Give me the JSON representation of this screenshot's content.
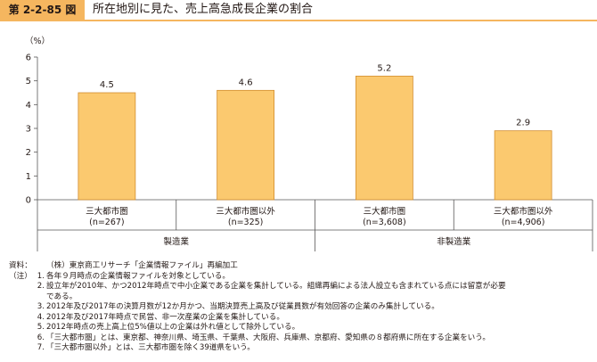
{
  "header": {
    "figure_label": "第 2-2-85 図",
    "title": "所在地別に見た、売上高急成長企業の割合"
  },
  "colors": {
    "bar_fill": "#fbc96f",
    "bar_stroke": "#d28d2e",
    "header_accent": "#f5b65f",
    "axis": "#595757"
  },
  "chart_data": {
    "type": "bar",
    "unit_label": "（%）",
    "ylim": [
      0,
      6
    ],
    "yticks": [
      "0",
      "1",
      "2",
      "3",
      "4",
      "5",
      "6"
    ],
    "grid": false,
    "categories": [
      {
        "name": "三大都市圏",
        "n": "(n=267)",
        "group": "製造業"
      },
      {
        "name": "三大都市圏以外",
        "n": "(n=325)",
        "group": "製造業"
      },
      {
        "name": "三大都市圏",
        "n": "(n=3,608)",
        "group": "非製造業"
      },
      {
        "name": "三大都市圏以外",
        "n": "(n=4,906)",
        "group": "非製造業"
      }
    ],
    "values": [
      4.5,
      4.6,
      5.2,
      2.9
    ],
    "value_labels": [
      "4.5",
      "4.6",
      "5.2",
      "2.9"
    ],
    "groups": [
      "製造業",
      "非製造業"
    ]
  },
  "notes": {
    "source_label": "資料：",
    "source": "（株）東京商工リサーチ「企業情報ファイル」再編加工",
    "note_label": "（注）",
    "items": [
      {
        "num": "1.",
        "text": "各年９月時点の企業情報ファイルを対象としている。"
      },
      {
        "num": "2.",
        "text": "設立年が2010年、かつ2012年時点で中小企業である企業を集計している。組織再編による法人設立も含まれている点には留意が必要"
      },
      {
        "num": "",
        "text": "である。"
      },
      {
        "num": "3.",
        "text": "2012年及び2017年の決算月数が12か月かつ、当期決算売上高及び従業員数が有効回答の企業のみ集計している。"
      },
      {
        "num": "4.",
        "text": "2012年及び2017年時点で民営、非一次産業の企業を集計している。"
      },
      {
        "num": "5.",
        "text": "2012年時点の売上高上位5%値以上の企業は外れ値として除外している。"
      },
      {
        "num": "6.",
        "text": "「三大都市圏」とは、東京都、神奈川県、埼玉県、千葉県、大阪府、兵庫県、京都府、愛知県の８都府県に所在する企業をいう。"
      },
      {
        "num": "7.",
        "text": "「三大都市圏以外」とは、三大都市圏を除く39道県をいう。"
      }
    ]
  }
}
